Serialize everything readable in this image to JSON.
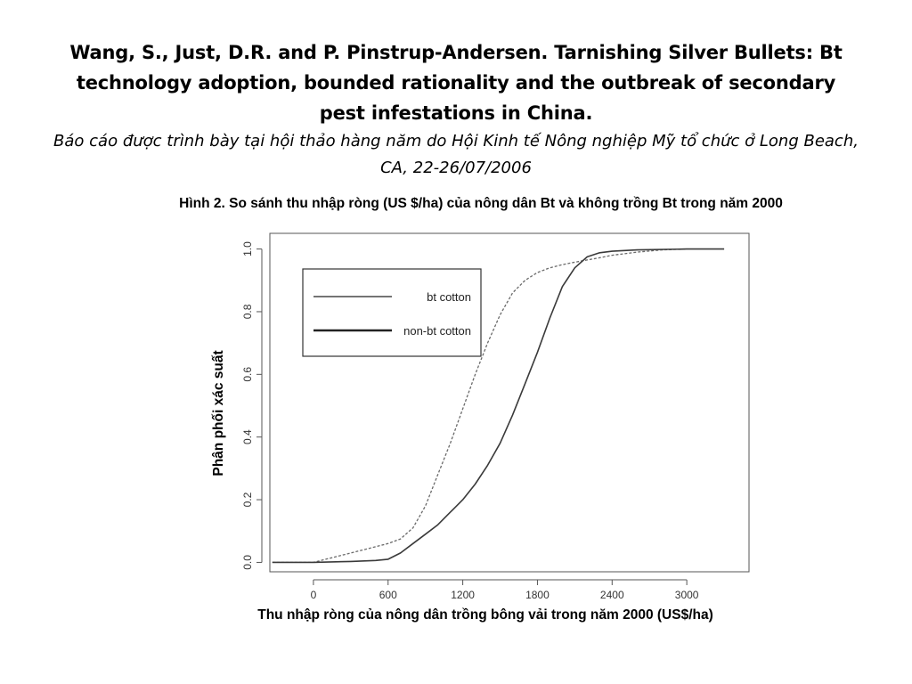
{
  "citation": {
    "main": "Wang, S., Just, D.R. and P. Pinstrup-Andersen.  Tarnishing Silver Bullets:  Bt technology adoption, bounded rationality and the outbreak of secondary pest infestations in China.",
    "sub": "Báo cáo được trình bày tại hội thảo hàng năm do Hội Kinh tế Nông nghiệp Mỹ tổ chức ở Long Beach, CA, 22-26/07/2006"
  },
  "figure_caption": "Hình 2. So sánh thu nhập ròng (US $/ha) của nông dân Bt và không trồng Bt trong năm 2000",
  "chart_data": {
    "type": "line",
    "xlabel": "Thu nhập ròng của nông dân trồng bông vải trong năm 2000 (US$/ha)",
    "ylabel": "Phân phối xác suất",
    "xlim": [
      -350,
      3500
    ],
    "ylim": [
      -0.03,
      1.05
    ],
    "x_ticks": [
      0,
      600,
      1200,
      1800,
      2400,
      3000
    ],
    "x_tick_labels": [
      "0",
      "600",
      "1200",
      "1800",
      "2400",
      "3000"
    ],
    "y_ticks": [
      0.0,
      0.2,
      0.4,
      0.6,
      0.8,
      1.0
    ],
    "y_tick_labels": [
      "0.0",
      "0.2",
      "0.4",
      "0.6",
      "0.8",
      "1.0"
    ],
    "grid": false,
    "legend_position": "top-left",
    "series": [
      {
        "name": "bt cotton",
        "style": "dashed",
        "color": "#6a6a6a",
        "x": [
          -330,
          0,
          200,
          400,
          600,
          700,
          800,
          900,
          1000,
          1100,
          1200,
          1300,
          1400,
          1500,
          1600,
          1700,
          1800,
          1900,
          2000,
          2100,
          2200,
          2300,
          2400,
          2600,
          2800,
          3000
        ],
        "y": [
          0.0,
          0.0,
          0.02,
          0.04,
          0.06,
          0.075,
          0.11,
          0.18,
          0.28,
          0.38,
          0.49,
          0.6,
          0.7,
          0.79,
          0.86,
          0.9,
          0.925,
          0.94,
          0.95,
          0.958,
          0.965,
          0.972,
          0.98,
          0.99,
          0.997,
          1.0
        ]
      },
      {
        "name": "non-bt cotton",
        "style": "solid",
        "color": "#3a3a3a",
        "x": [
          -330,
          0,
          300,
          500,
          600,
          700,
          800,
          900,
          1000,
          1100,
          1200,
          1300,
          1400,
          1500,
          1600,
          1700,
          1800,
          1900,
          2000,
          2100,
          2200,
          2300,
          2400,
          2600,
          3000,
          3300
        ],
        "y": [
          0.0,
          0.0,
          0.003,
          0.006,
          0.01,
          0.03,
          0.06,
          0.09,
          0.12,
          0.16,
          0.2,
          0.25,
          0.31,
          0.38,
          0.47,
          0.57,
          0.67,
          0.78,
          0.88,
          0.94,
          0.975,
          0.988,
          0.993,
          0.997,
          1.0,
          1.0
        ]
      }
    ]
  }
}
